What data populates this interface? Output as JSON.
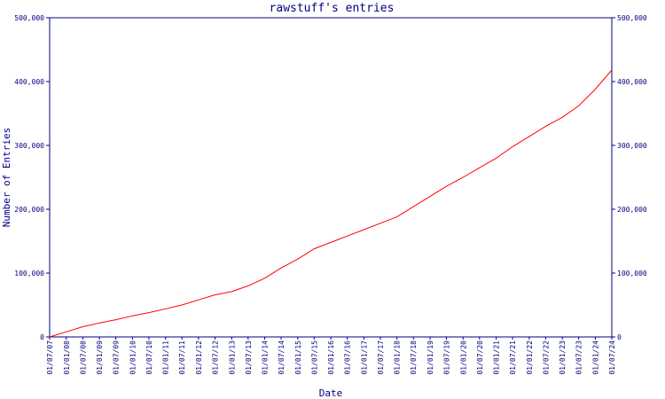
{
  "chart_data": {
    "type": "line",
    "title": "rawstuff's entries",
    "xlabel": "Date",
    "ylabel": "Number of Entries",
    "grid": false,
    "legend": "none",
    "ylim": [
      0,
      500000
    ],
    "y_ticks": [
      0,
      100000,
      200000,
      300000,
      400000,
      500000
    ],
    "y_tick_labels": [
      "0",
      "100,000",
      "200,000",
      "300,000",
      "400,000",
      "500,000"
    ],
    "x_tick_labels": [
      "01/07/07",
      "01/01/08",
      "01/07/08",
      "01/01/09",
      "01/07/09",
      "01/01/10",
      "01/07/10",
      "01/01/11",
      "01/07/11",
      "01/01/12",
      "01/07/12",
      "01/01/13",
      "01/07/13",
      "01/01/14",
      "01/07/14",
      "01/01/15",
      "01/07/15",
      "01/01/16",
      "01/07/16",
      "01/01/17",
      "01/07/17",
      "01/01/18",
      "01/07/18",
      "01/01/19",
      "01/07/19",
      "01/01/20",
      "01/07/20",
      "01/01/21",
      "01/07/21",
      "01/01/22",
      "01/07/22",
      "01/01/23",
      "01/07/23",
      "01/01/24",
      "01/07/24"
    ],
    "x_range": [
      "01/07/07",
      "01/07/24"
    ],
    "series": [
      {
        "color": "#ff0000",
        "points": [
          {
            "x": "01/07/07",
            "y": 0
          },
          {
            "x": "01/01/08",
            "y": 8000
          },
          {
            "x": "01/07/08",
            "y": 16000
          },
          {
            "x": "01/01/09",
            "y": 22000
          },
          {
            "x": "01/07/09",
            "y": 27000
          },
          {
            "x": "01/01/10",
            "y": 33000
          },
          {
            "x": "01/07/10",
            "y": 38000
          },
          {
            "x": "01/01/11",
            "y": 44000
          },
          {
            "x": "01/07/11",
            "y": 50000
          },
          {
            "x": "01/01/12",
            "y": 58000
          },
          {
            "x": "01/07/12",
            "y": 66000
          },
          {
            "x": "01/01/13",
            "y": 71000
          },
          {
            "x": "01/07/13",
            "y": 80000
          },
          {
            "x": "01/01/14",
            "y": 92000
          },
          {
            "x": "01/07/14",
            "y": 108000
          },
          {
            "x": "01/01/15",
            "y": 122000
          },
          {
            "x": "01/07/15",
            "y": 138000
          },
          {
            "x": "01/01/16",
            "y": 148000
          },
          {
            "x": "01/07/16",
            "y": 158000
          },
          {
            "x": "01/01/17",
            "y": 168000
          },
          {
            "x": "01/07/17",
            "y": 178000
          },
          {
            "x": "01/01/18",
            "y": 188000
          },
          {
            "x": "01/07/18",
            "y": 204000
          },
          {
            "x": "01/01/19",
            "y": 220000
          },
          {
            "x": "01/07/19",
            "y": 236000
          },
          {
            "x": "01/01/20",
            "y": 250000
          },
          {
            "x": "01/07/20",
            "y": 265000
          },
          {
            "x": "01/01/21",
            "y": 280000
          },
          {
            "x": "01/07/21",
            "y": 298000
          },
          {
            "x": "01/01/22",
            "y": 314000
          },
          {
            "x": "01/07/22",
            "y": 330000
          },
          {
            "x": "01/01/23",
            "y": 344000
          },
          {
            "x": "01/07/23",
            "y": 362000
          },
          {
            "x": "01/01/24",
            "y": 388000
          },
          {
            "x": "01/07/24",
            "y": 418000
          }
        ]
      }
    ],
    "colors": {
      "axis": "#000080",
      "line": "#ff0000",
      "background": "#ffffff"
    }
  }
}
